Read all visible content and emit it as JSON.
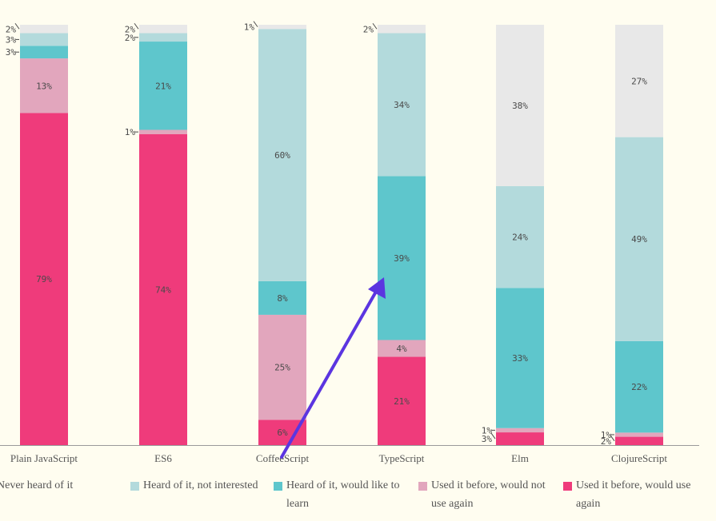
{
  "chart_data": {
    "type": "stacked-bar",
    "categories": [
      "Plain JavaScript",
      "ES6",
      "CoffeeScript",
      "TypeScript",
      "Elm",
      "ClojureScript"
    ],
    "series": [
      {
        "name": "Used it before, would use again",
        "color": "#ef3b7b",
        "values": [
          79,
          74,
          6,
          21,
          3,
          2
        ]
      },
      {
        "name": "Used it before, would not use again",
        "color": "#e2a6bd",
        "values": [
          13,
          1,
          25,
          4,
          1,
          1
        ]
      },
      {
        "name": "Heard of it, would like to learn",
        "color": "#5ec6cc",
        "values": [
          3,
          21,
          8,
          39,
          33,
          22
        ]
      },
      {
        "name": "Heard of it, not interested",
        "color": "#b3dadc",
        "values": [
          3,
          2,
          60,
          34,
          24,
          49
        ]
      },
      {
        "name": "Never heard of it",
        "color": "#e8e8e8",
        "values": [
          2,
          2,
          1,
          2,
          38,
          27
        ]
      }
    ],
    "label_suffix": "%",
    "ylim": [
      0,
      100
    ],
    "xlabel": "",
    "ylabel": ""
  },
  "legend": {
    "items": [
      {
        "lines": [
          "Never heard of it"
        ],
        "color": "#e8e8e8",
        "series": 4
      },
      {
        "lines": [
          "Heard of it, not interested"
        ],
        "color": "#b3dadc",
        "series": 3
      },
      {
        "lines": [
          "Heard of it, would like to",
          "learn"
        ],
        "color": "#5ec6cc",
        "series": 2
      },
      {
        "lines": [
          "Used it before, would not",
          "use again"
        ],
        "color": "#e2a6bd",
        "series": 1
      },
      {
        "lines": [
          "Used it before, would use",
          "again"
        ],
        "color": "#ef3b7b",
        "series": 0
      }
    ]
  },
  "annotation": {
    "type": "arrow",
    "color": "#5b35e0"
  }
}
